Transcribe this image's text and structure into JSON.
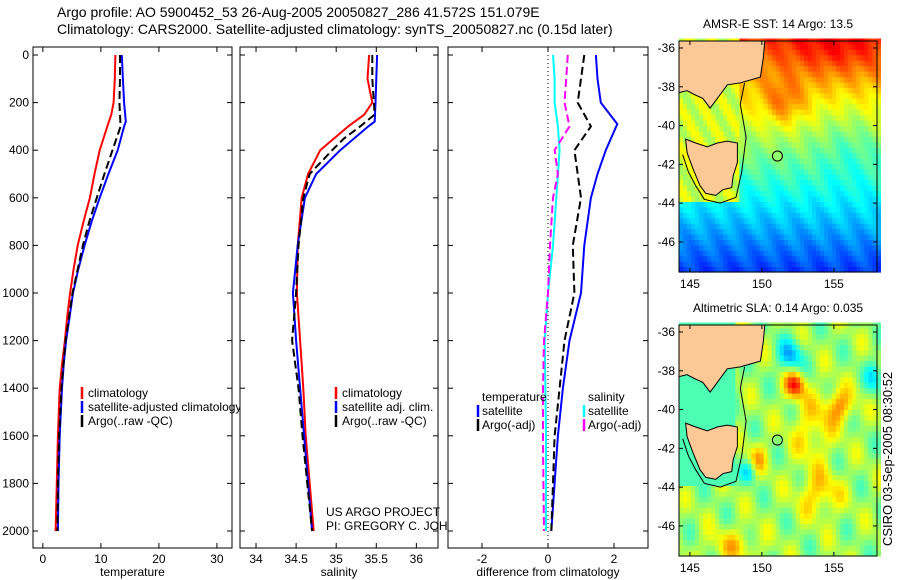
{
  "header": {
    "line1": "Argo profile: AO 5900452_53 26-Aug-2005 20050827_286 41.572S 151.079E",
    "line2": "Climatology: CARS2000. Satellite-adjusted climatology: synTS_20050827.nc (0.15d later)"
  },
  "colors": {
    "red": "#ff0000",
    "blue": "#0000ff",
    "black": "#000000",
    "cyan": "#00ffff",
    "magenta": "#ff00ff",
    "land": "#fcc896"
  },
  "chart_data": [
    {
      "type": "line",
      "id": "temperature",
      "xlabel": "temperature",
      "ylabel": "",
      "xlim": [
        -1.7,
        32.6
      ],
      "ylim": [
        2070,
        -35
      ],
      "xticks": [
        0,
        10,
        20,
        30
      ],
      "yticks": [
        0,
        200,
        400,
        600,
        800,
        1000,
        1200,
        1400,
        1600,
        1800,
        2000
      ],
      "legend": [
        "climatology",
        "satellite-adjusted climatology",
        "Argo(..raw -QC)"
      ],
      "legend_position": "bottom-right",
      "series": [
        {
          "name": "climatology",
          "color": "red",
          "dash": false,
          "depth": [
            0,
            100,
            200,
            250,
            300,
            400,
            500,
            600,
            700,
            800,
            900,
            1000,
            1100,
            1200,
            1300,
            1400,
            1600,
            1800,
            2000
          ],
          "values": [
            12.5,
            12.4,
            12.2,
            11.8,
            11.1,
            9.8,
            8.9,
            8.1,
            7.0,
            6.0,
            5.3,
            4.7,
            4.2,
            3.8,
            3.3,
            2.9,
            2.6,
            2.4,
            2.2
          ]
        },
        {
          "name": "satellite-adjusted climatology",
          "color": "blue",
          "dash": false,
          "depth": [
            0,
            100,
            200,
            280,
            300,
            400,
            500,
            600,
            700,
            800,
            900,
            1000,
            1100,
            1200,
            1300,
            1400,
            1600,
            1800,
            2000
          ],
          "values": [
            13.6,
            13.8,
            14.0,
            14.3,
            14.0,
            12.9,
            11.3,
            9.8,
            8.4,
            7.2,
            6.1,
            5.2,
            4.6,
            4.0,
            3.6,
            3.3,
            2.9,
            2.7,
            2.6
          ]
        },
        {
          "name": "Argo(..raw -QC)",
          "color": "black",
          "dash": true,
          "depth": [
            0,
            100,
            200,
            300,
            400,
            500,
            600,
            700,
            800,
            900,
            1000,
            1200,
            1400,
            1600,
            1800,
            2000
          ],
          "values": [
            13.3,
            13.3,
            13.2,
            13.4,
            12.0,
            10.6,
            9.3,
            8.0,
            6.9,
            6.0,
            5.1,
            3.9,
            3.2,
            2.8,
            2.6,
            2.5
          ]
        }
      ]
    },
    {
      "type": "line",
      "id": "salinity",
      "xlabel": "salinity",
      "xlim": [
        33.8,
        36.27
      ],
      "ylim": [
        2070,
        -35
      ],
      "xticks": [
        34,
        34.5,
        35,
        35.5,
        36
      ],
      "legend": [
        "climatology",
        "satellite adj. clim.",
        "Argo(..raw -QC)"
      ],
      "legend_position": "bottom-right",
      "annotation": [
        "US ARGO PROJECT",
        "PI: GREGORY C. JOHNSON"
      ],
      "series": [
        {
          "name": "climatology",
          "color": "red",
          "dash": false,
          "depth": [
            0,
            100,
            200,
            250,
            300,
            400,
            500,
            600,
            800,
            1000,
            1200,
            1400,
            1600,
            1800,
            2000
          ],
          "values": [
            35.41,
            35.39,
            35.45,
            35.35,
            35.15,
            34.8,
            34.65,
            34.57,
            34.52,
            34.51,
            34.55,
            34.59,
            34.62,
            34.67,
            34.72
          ]
        },
        {
          "name": "satellite adj. clim.",
          "color": "blue",
          "dash": false,
          "depth": [
            0,
            100,
            200,
            280,
            300,
            400,
            500,
            600,
            800,
            1000,
            1200,
            1400,
            1600,
            1800,
            2000
          ],
          "values": [
            35.51,
            35.5,
            35.49,
            35.48,
            35.4,
            35.05,
            34.75,
            34.61,
            34.52,
            34.46,
            34.5,
            34.55,
            34.6,
            34.65,
            34.7
          ]
        },
        {
          "name": "Argo(..raw -QC)",
          "color": "black",
          "dash": true,
          "depth": [
            0,
            100,
            200,
            250,
            300,
            350,
            400,
            500,
            600,
            800,
            1000,
            1200,
            1400,
            1600,
            1800,
            2000
          ],
          "values": [
            35.45,
            35.45,
            35.47,
            35.48,
            35.3,
            35.1,
            34.95,
            34.67,
            34.59,
            34.53,
            34.5,
            34.45,
            34.53,
            34.58,
            34.64,
            34.7
          ]
        }
      ]
    },
    {
      "type": "line",
      "id": "difference",
      "xlabel": "difference from climatology",
      "xlim": [
        -3.03,
        3.03
      ],
      "ylim": [
        2070,
        -35
      ],
      "xticks": [
        -2,
        0,
        2
      ],
      "zero_line": true,
      "legend_groups": [
        {
          "title": "temperature",
          "items": [
            "satellite",
            "Argo(-adj)"
          ]
        },
        {
          "title": "salinity",
          "items": [
            "satellite",
            "Argo(-adj)"
          ]
        }
      ],
      "series": [
        {
          "name": "temperature satellite",
          "color": "blue",
          "dash": false,
          "depth": [
            0,
            100,
            200,
            290,
            400,
            500,
            600,
            800,
            1000,
            1200,
            1400,
            1600,
            1800,
            2000
          ],
          "values": [
            1.45,
            1.5,
            1.6,
            2.1,
            1.75,
            1.5,
            1.3,
            1.1,
            1.0,
            0.65,
            0.45,
            0.3,
            0.2,
            0.1
          ]
        },
        {
          "name": "temperature Argo(-adj)",
          "color": "black",
          "dash": true,
          "depth": [
            0,
            100,
            200,
            300,
            400,
            500,
            600,
            800,
            1000,
            1200,
            1400,
            1600,
            1800,
            2000
          ],
          "values": [
            1.1,
            1.0,
            0.9,
            1.3,
            0.8,
            0.9,
            1.0,
            0.75,
            0.8,
            0.5,
            0.35,
            0.2,
            0.15,
            0.1
          ]
        },
        {
          "name": "salinity satellite",
          "color": "cyan",
          "dash": false,
          "depth": [
            0,
            100,
            200,
            300,
            400,
            600,
            800,
            1000,
            1200,
            1400,
            1600,
            1800,
            2000
          ],
          "values": [
            0.15,
            0.2,
            0.2,
            0.3,
            0.35,
            0.25,
            0.15,
            0.0,
            -0.1,
            -0.08,
            -0.06,
            -0.06,
            -0.06
          ]
        },
        {
          "name": "salinity Argo(-adj)",
          "color": "magenta",
          "dash": true,
          "depth": [
            0,
            100,
            200,
            300,
            400,
            500,
            600,
            800,
            1000,
            1200,
            1400,
            1600,
            1800,
            2000
          ],
          "values": [
            0.6,
            0.55,
            0.5,
            0.65,
            0.2,
            0.3,
            0.15,
            0.06,
            0.0,
            -0.12,
            -0.15,
            -0.15,
            -0.14,
            -0.12
          ]
        }
      ]
    },
    {
      "type": "heatmap",
      "id": "sst-map",
      "title": "AMSR-E SST: 14 Argo: 13.5",
      "xlim": [
        144.24,
        158
      ],
      "ylim": [
        -47.55,
        -35.64
      ],
      "xticks": [
        145,
        150,
        155
      ],
      "yticks": [
        -36,
        -38,
        -40,
        -42,
        -44,
        -46
      ],
      "marker": {
        "lon": 151.079,
        "lat": -41.572
      }
    },
    {
      "type": "heatmap",
      "id": "sla-map",
      "title": "Altimetric SLA: 0.14 Argo: 0.035",
      "xlim": [
        144.24,
        158
      ],
      "ylim": [
        -47.55,
        -35.64
      ],
      "xticks": [
        145,
        150,
        155
      ],
      "yticks": [
        -36,
        -38,
        -40,
        -42,
        -44,
        -46
      ],
      "marker": {
        "lon": 151.079,
        "lat": -41.572
      }
    }
  ],
  "footer": {
    "stamp": "CSIRO 03-Sep-2005 08:30:52"
  }
}
